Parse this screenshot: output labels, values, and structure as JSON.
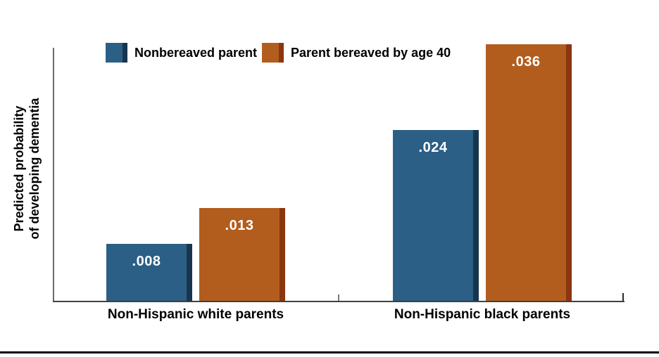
{
  "chart_data": {
    "type": "bar",
    "title": "",
    "ylabel": "Predicted probability of developing dementia",
    "ylabel_lines": [
      "Predicted probability",
      "of developing dementia"
    ],
    "xlabel": "",
    "categories": [
      "Non-Hispanic white parents",
      "Non-Hispanic black parents"
    ],
    "series": [
      {
        "name": "Nonbereaved parent",
        "values": [
          0.008,
          0.024
        ],
        "value_labels": [
          ".008",
          ".024"
        ],
        "color": "#2b5f85",
        "edge_color": "#17364d"
      },
      {
        "name": "Parent bereaved by age 40",
        "values": [
          0.013,
          0.036
        ],
        "value_labels": [
          ".013",
          ".036"
        ],
        "color": "#b25d1e",
        "edge_color": "#8a3610"
      }
    ],
    "ylim": [
      0,
      0.036
    ],
    "grid": false,
    "legend_position": "top-left",
    "value_label_color": "#ffffff",
    "axis_color": "#404040"
  }
}
